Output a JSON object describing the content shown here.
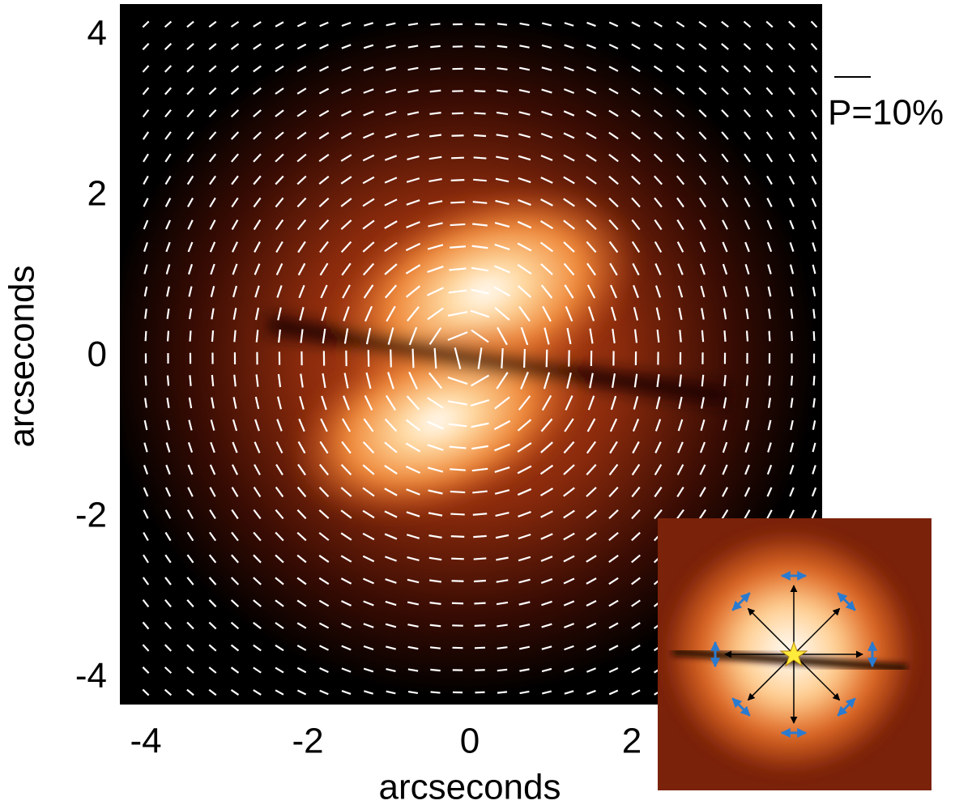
{
  "chart_data": {
    "type": "image",
    "xlabel": "arcseconds",
    "ylabel": "arcseconds",
    "annotation": "P=10%",
    "xlim": [
      -4.32,
      4.35
    ],
    "ylim": [
      -4.33,
      4.39
    ],
    "xticks": [
      -4,
      -2,
      0,
      2
    ],
    "yticks": [
      -4,
      -2,
      0,
      2,
      4
    ]
  }
}
